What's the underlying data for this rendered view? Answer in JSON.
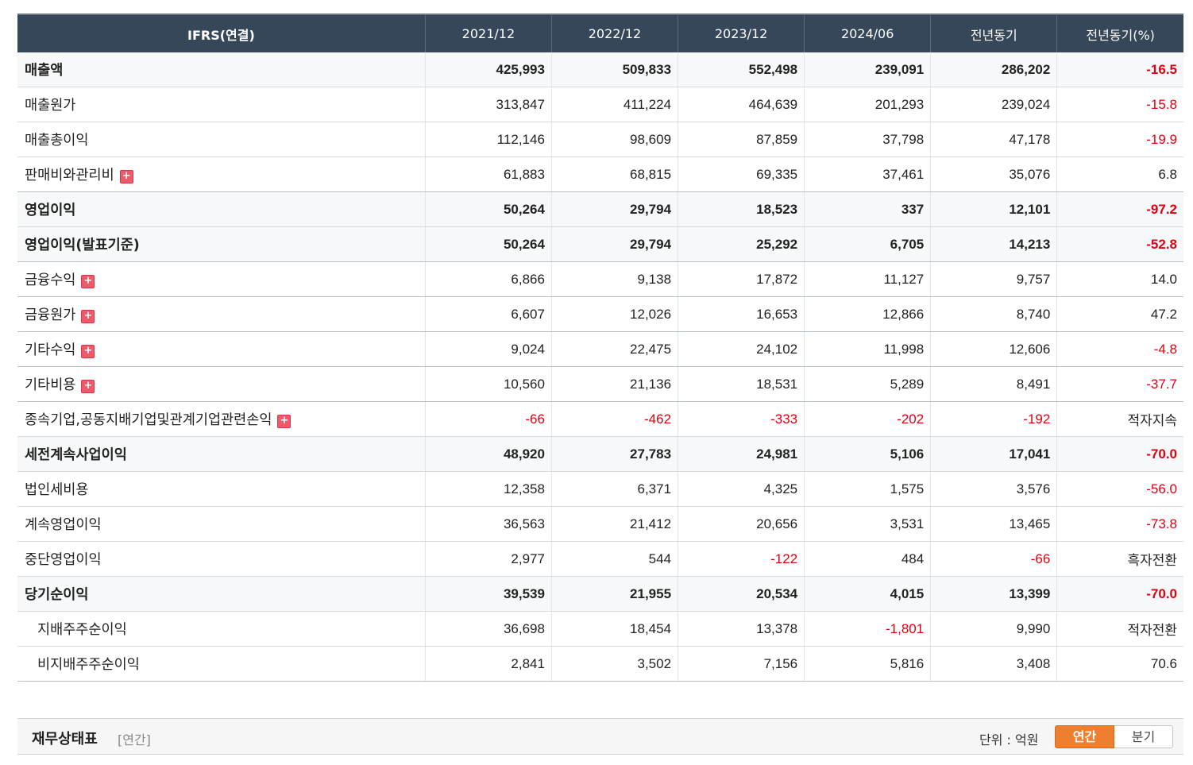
{
  "table": {
    "header": [
      "IFRS(연결)",
      "2021/12",
      "2022/12",
      "2023/12",
      "2024/06",
      "전년동기",
      "전년동기(%)"
    ],
    "rows": [
      {
        "label": "매출액",
        "values": [
          "425,993",
          "509,833",
          "552,498",
          "239,091",
          "286,202",
          "-16.5"
        ],
        "bold": true,
        "expand": false,
        "sub": false
      },
      {
        "label": "매출원가",
        "values": [
          "313,847",
          "411,224",
          "464,639",
          "201,293",
          "239,024",
          "-15.8"
        ],
        "bold": false,
        "expand": false,
        "sub": false
      },
      {
        "label": "매출총이익",
        "values": [
          "112,146",
          "98,609",
          "87,859",
          "37,798",
          "47,178",
          "-19.9"
        ],
        "bold": false,
        "expand": false,
        "sub": false
      },
      {
        "label": "판매비와관리비",
        "values": [
          "61,883",
          "68,815",
          "69,335",
          "37,461",
          "35,076",
          "6.8"
        ],
        "bold": false,
        "expand": true,
        "sub": false
      },
      {
        "label": "영업이익",
        "values": [
          "50,264",
          "29,794",
          "18,523",
          "337",
          "12,101",
          "-97.2"
        ],
        "bold": true,
        "expand": false,
        "sub": false
      },
      {
        "label": "영업이익(발표기준)",
        "values": [
          "50,264",
          "29,794",
          "25,292",
          "6,705",
          "14,213",
          "-52.8"
        ],
        "bold": true,
        "expand": false,
        "sub": false
      },
      {
        "label": "금융수익",
        "values": [
          "6,866",
          "9,138",
          "17,872",
          "11,127",
          "9,757",
          "14.0"
        ],
        "bold": false,
        "expand": true,
        "sub": false
      },
      {
        "label": "금융원가",
        "values": [
          "6,607",
          "12,026",
          "16,653",
          "12,866",
          "8,740",
          "47.2"
        ],
        "bold": false,
        "expand": true,
        "sub": false
      },
      {
        "label": "기타수익",
        "values": [
          "9,024",
          "22,475",
          "24,102",
          "11,998",
          "12,606",
          "-4.8"
        ],
        "bold": false,
        "expand": true,
        "sub": false
      },
      {
        "label": "기타비용",
        "values": [
          "10,560",
          "21,136",
          "18,531",
          "5,289",
          "8,491",
          "-37.7"
        ],
        "bold": false,
        "expand": true,
        "sub": false
      },
      {
        "label": "종속기업,공동지배기업및관계기업관련손익",
        "values": [
          "-66",
          "-462",
          "-333",
          "-202",
          "-192",
          "적자지속"
        ],
        "bold": false,
        "expand": true,
        "sub": false
      },
      {
        "label": "세전계속사업이익",
        "values": [
          "48,920",
          "27,783",
          "24,981",
          "5,106",
          "17,041",
          "-70.0"
        ],
        "bold": true,
        "expand": false,
        "sub": false
      },
      {
        "label": "법인세비용",
        "values": [
          "12,358",
          "6,371",
          "4,325",
          "1,575",
          "3,576",
          "-56.0"
        ],
        "bold": false,
        "expand": false,
        "sub": false
      },
      {
        "label": "계속영업이익",
        "values": [
          "36,563",
          "21,412",
          "20,656",
          "3,531",
          "13,465",
          "-73.8"
        ],
        "bold": false,
        "expand": false,
        "sub": false
      },
      {
        "label": "중단영업이익",
        "values": [
          "2,977",
          "544",
          "-122",
          "484",
          "-66",
          "흑자전환"
        ],
        "bold": false,
        "expand": false,
        "sub": false
      },
      {
        "label": "당기순이익",
        "values": [
          "39,539",
          "21,955",
          "20,534",
          "4,015",
          "13,399",
          "-70.0"
        ],
        "bold": true,
        "expand": false,
        "sub": false
      },
      {
        "label": "지배주주순이익",
        "values": [
          "36,698",
          "18,454",
          "13,378",
          "-1,801",
          "9,990",
          "적자전환"
        ],
        "bold": false,
        "expand": false,
        "sub": true
      },
      {
        "label": "비지배주주순이익",
        "values": [
          "2,841",
          "3,502",
          "7,156",
          "5,816",
          "3,408",
          "70.6"
        ],
        "bold": false,
        "expand": false,
        "sub": true
      }
    ],
    "expand_icon": "plus-icon"
  },
  "section": {
    "title": "재무상태표",
    "subtitle": "[연간]",
    "unit": "단위 : 억원",
    "toggle": {
      "annual": "연간",
      "quarter": "분기",
      "selected": "연간"
    }
  },
  "colors": {
    "header_bg": "#37475a",
    "negative": "#e4000f",
    "toggle_active": "#ee7f2e"
  }
}
